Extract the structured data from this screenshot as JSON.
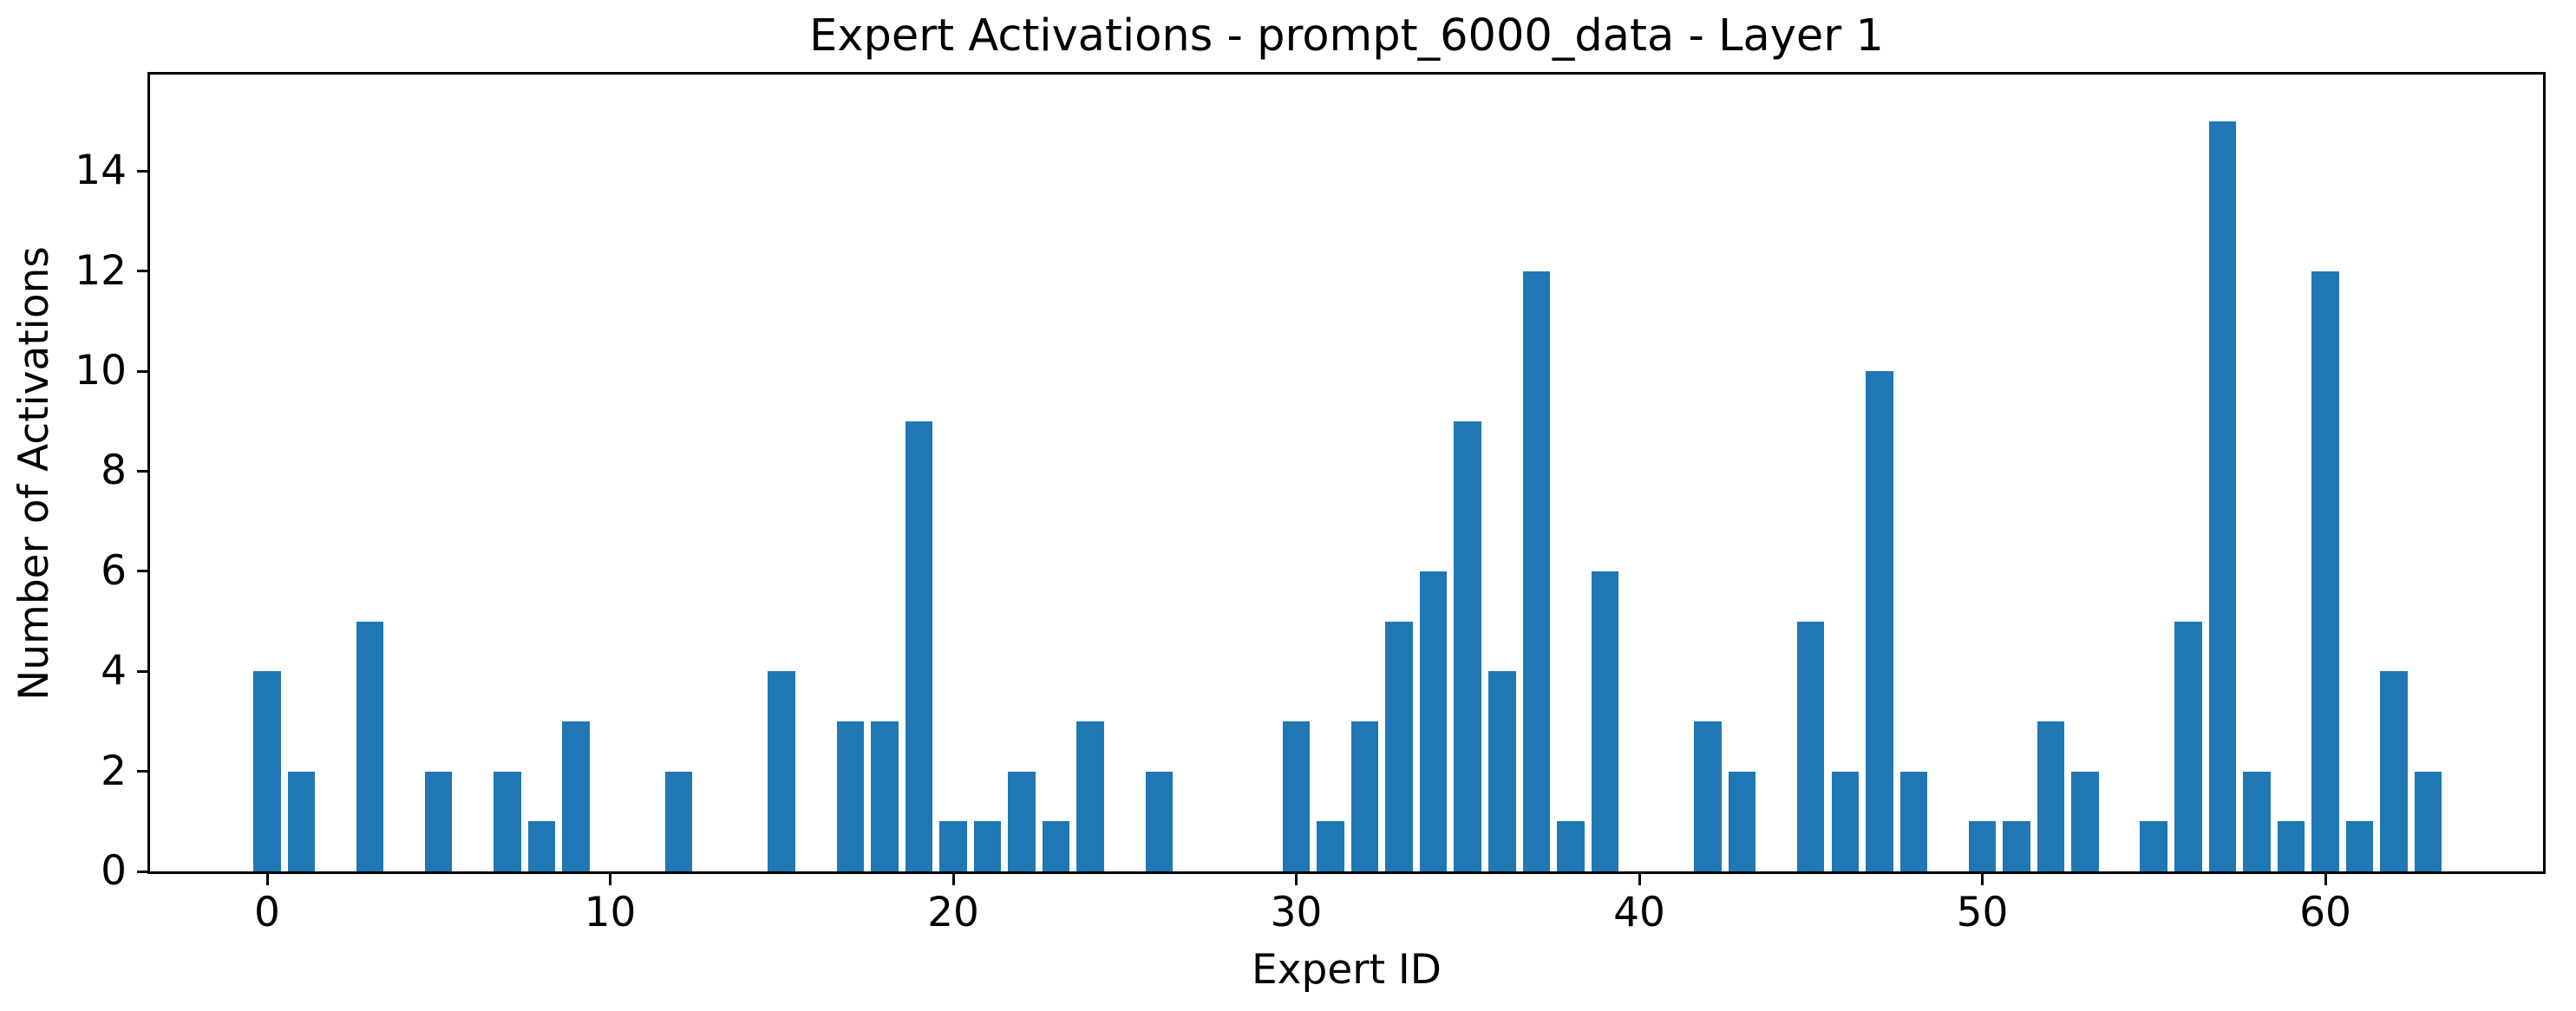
{
  "chart": {
    "title": "Expert Activations - prompt_6000_data - Layer 1",
    "xlabel": "Expert ID",
    "ylabel": "Number of Activations"
  },
  "chart_data": {
    "type": "bar",
    "title": "Expert Activations - prompt_6000_data - Layer 1",
    "xlabel": "Expert ID",
    "ylabel": "Number of Activations",
    "x": [
      0,
      1,
      2,
      3,
      4,
      5,
      6,
      7,
      8,
      9,
      10,
      11,
      12,
      13,
      14,
      15,
      16,
      17,
      18,
      19,
      20,
      21,
      22,
      23,
      24,
      25,
      26,
      27,
      28,
      29,
      30,
      31,
      32,
      33,
      34,
      35,
      36,
      37,
      38,
      39,
      40,
      41,
      42,
      43,
      44,
      45,
      46,
      47,
      48,
      49,
      50,
      51,
      52,
      53,
      54,
      55,
      56,
      57,
      58,
      59,
      60,
      61,
      62,
      63
    ],
    "values": [
      4,
      2,
      0,
      5,
      0,
      2,
      0,
      2,
      1,
      3,
      0,
      0,
      2,
      0,
      0,
      4,
      0,
      3,
      3,
      9,
      1,
      1,
      2,
      1,
      3,
      0,
      2,
      0,
      0,
      0,
      3,
      1,
      3,
      5,
      6,
      9,
      4,
      12,
      1,
      6,
      0,
      0,
      3,
      2,
      0,
      5,
      2,
      10,
      2,
      0,
      1,
      1,
      3,
      2,
      0,
      1,
      5,
      15,
      2,
      1,
      12,
      1,
      4,
      2
    ],
    "xticks": [
      0,
      10,
      20,
      30,
      40,
      50,
      60
    ],
    "yticks": [
      0,
      2,
      4,
      6,
      8,
      10,
      12,
      14
    ],
    "xlim": [
      -3.44,
      66.35
    ],
    "ylim": [
      0,
      15.94
    ],
    "grid": false,
    "legend": null,
    "bar_color": "#1f77b4",
    "axis_color": "#000000",
    "background_color": "#ffffff"
  }
}
